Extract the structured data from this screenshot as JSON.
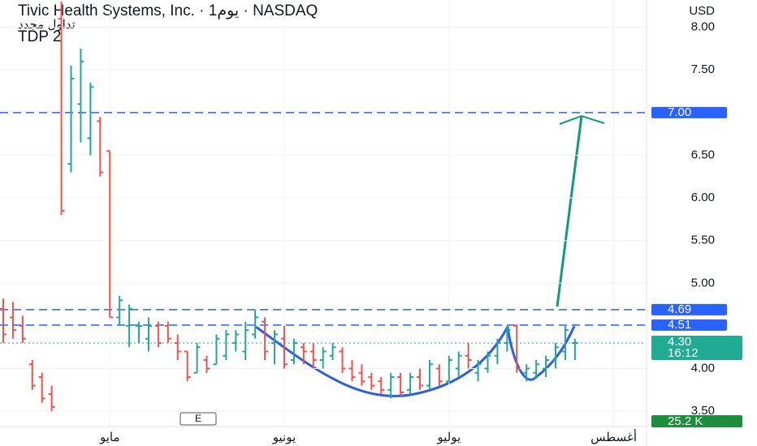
{
  "chart_data": {
    "type": "ohlc",
    "title": "Tivic Health Systems, Inc. · 1يوم · NASDAQ",
    "subtitle": "تداول مجدد",
    "indicator": "TDP 2",
    "currency": "USD",
    "categories": [
      null,
      null,
      null,
      null,
      null,
      null,
      null,
      null,
      null,
      null,
      null,
      null,
      null,
      null,
      null,
      null,
      null,
      null,
      null,
      null,
      null,
      null,
      null,
      null,
      null,
      null,
      null,
      null,
      null,
      null,
      null,
      null,
      null,
      null,
      null,
      null,
      null,
      null,
      null,
      null,
      null,
      null,
      null,
      null,
      null,
      null,
      null,
      null,
      null,
      null,
      null,
      null,
      null,
      null,
      null,
      null,
      null,
      null,
      null,
      null
    ],
    "open": [
      4.7,
      4.6,
      4.5,
      4.05,
      3.9,
      3.7,
      8.1,
      6.4,
      7.1,
      6.7,
      6.9,
      6.55,
      4.6,
      4.5,
      4.5,
      4.35,
      4.5,
      4.5,
      4.3,
      4.2,
      3.95,
      4.1,
      4.05,
      4.15,
      4.3,
      4.2,
      4.4,
      4.55,
      4.3,
      4.35,
      4.1,
      4.25,
      4.2,
      4.1,
      4.15,
      4.2,
      4.0,
      3.95,
      3.9,
      3.85,
      3.75,
      3.9,
      3.75,
      3.9,
      3.8,
      4.0,
      3.85,
      4.0,
      4.15,
      3.95,
      4.0,
      4.15,
      4.3,
      4.5,
      3.95,
      3.95,
      4.0,
      4.1,
      4.2,
      4.3
    ],
    "high": [
      4.82,
      4.78,
      4.62,
      4.1,
      3.95,
      3.8,
      8.3,
      7.55,
      7.75,
      7.35,
      6.95,
      6.55,
      4.85,
      4.75,
      4.55,
      4.6,
      4.55,
      4.55,
      4.4,
      4.2,
      4.3,
      4.15,
      4.4,
      4.45,
      4.45,
      4.55,
      4.69,
      4.6,
      4.45,
      4.5,
      4.35,
      4.3,
      4.3,
      4.25,
      4.3,
      4.25,
      4.1,
      4.05,
      3.95,
      3.9,
      3.95,
      3.95,
      3.95,
      4.0,
      4.1,
      4.05,
      4.15,
      4.2,
      4.3,
      4.1,
      4.2,
      4.35,
      4.5,
      4.52,
      4.05,
      4.1,
      4.15,
      4.3,
      4.5,
      4.35
    ],
    "low": [
      4.3,
      4.35,
      4.3,
      3.75,
      3.6,
      3.5,
      5.8,
      6.3,
      6.65,
      6.5,
      6.25,
      4.6,
      4.5,
      4.25,
      4.3,
      4.2,
      4.25,
      4.3,
      4.1,
      3.85,
      3.95,
      3.95,
      4.05,
      4.1,
      4.2,
      4.1,
      4.35,
      4.1,
      4.05,
      4.0,
      4.05,
      4.05,
      4.0,
      4.0,
      4.1,
      3.95,
      3.85,
      3.8,
      3.75,
      3.7,
      3.65,
      3.68,
      3.7,
      3.75,
      3.75,
      3.8,
      3.85,
      3.9,
      4.0,
      3.85,
      3.95,
      4.05,
      4.2,
      3.95,
      3.85,
      3.88,
      3.9,
      4.0,
      4.1,
      4.1
    ],
    "close": [
      4.4,
      4.45,
      4.35,
      3.8,
      3.65,
      3.55,
      5.85,
      7.4,
      7.6,
      7.3,
      6.3,
      4.6,
      4.8,
      4.7,
      4.5,
      4.5,
      4.3,
      4.35,
      4.2,
      3.9,
      4.25,
      4.0,
      4.35,
      4.4,
      4.4,
      4.45,
      4.6,
      4.2,
      4.4,
      4.05,
      4.3,
      4.2,
      4.1,
      4.2,
      4.25,
      4.0,
      3.9,
      3.85,
      3.8,
      3.75,
      3.9,
      3.72,
      3.9,
      3.8,
      4.05,
      3.85,
      4.1,
      4.15,
      4.1,
      4.05,
      4.15,
      4.3,
      4.45,
      4.0,
      4.0,
      4.05,
      4.1,
      4.25,
      4.45,
      4.3
    ],
    "up_color": "#26a69a",
    "down_color": "#ef5350",
    "ylim": [
      3.33,
      8.32
    ],
    "yticks": [
      {
        "value": 3.5,
        "label": "3.50"
      },
      {
        "value": 4,
        "label": "4.00"
      },
      {
        "value": 4.5,
        "label": "4.50"
      },
      {
        "value": 5,
        "label": "5.00"
      },
      {
        "value": 5.5,
        "label": "5.50"
      },
      {
        "value": 6,
        "label": "6.00"
      },
      {
        "value": 6.5,
        "label": "6.50"
      },
      {
        "value": 7,
        "label": "7.00"
      },
      {
        "value": 7.5,
        "label": "7.50"
      },
      {
        "value": 8,
        "label": "8.00"
      }
    ],
    "xticks": [
      {
        "value": 11,
        "label": "مايو"
      },
      {
        "value": 29,
        "label": "يونيو"
      },
      {
        "value": 46,
        "label": "يوليو"
      },
      {
        "value": 63,
        "label": "أغسطس"
      }
    ],
    "levels": [
      {
        "value": 7,
        "label": "7.00"
      },
      {
        "value": 4.69,
        "label": "4.69"
      },
      {
        "value": 4.51,
        "label": "4.51"
      }
    ],
    "level_color": "#2962ff",
    "last_price": {
      "value": 4.3,
      "label": "4.30",
      "countdown": "16:12",
      "color": "#22ab94"
    },
    "last_volume": {
      "value": 25200,
      "label": "25.2 K",
      "color": "#1e8e3e"
    },
    "event_marker": "E"
  }
}
